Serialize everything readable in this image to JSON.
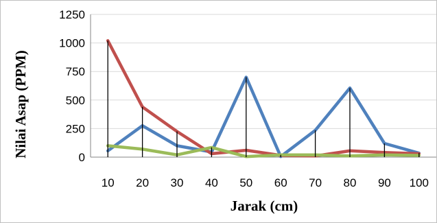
{
  "chart_data": {
    "type": "line",
    "title": "",
    "xlabel": "Jarak (cm)",
    "ylabel": "Nilai Asap (PPM)",
    "categories": [
      "10",
      "20",
      "30",
      "40",
      "50",
      "60",
      "70",
      "80",
      "90",
      "100"
    ],
    "ylim": [
      0,
      1250
    ],
    "yticks": [
      "0",
      "250",
      "500",
      "750",
      "1000",
      "1250"
    ],
    "grid": "horizontal",
    "legend": "none",
    "drop_lines": true,
    "series": [
      {
        "color": "#4f81bd",
        "values": [
          55,
          275,
          100,
          45,
          700,
          5,
          235,
          605,
          120,
          35
        ]
      },
      {
        "color": "#c0504d",
        "values": [
          1020,
          440,
          225,
          30,
          60,
          15,
          10,
          55,
          40,
          30
        ]
      },
      {
        "color": "#9bbb59",
        "values": [
          100,
          70,
          20,
          85,
          5,
          20,
          20,
          10,
          20,
          15
        ]
      }
    ]
  }
}
